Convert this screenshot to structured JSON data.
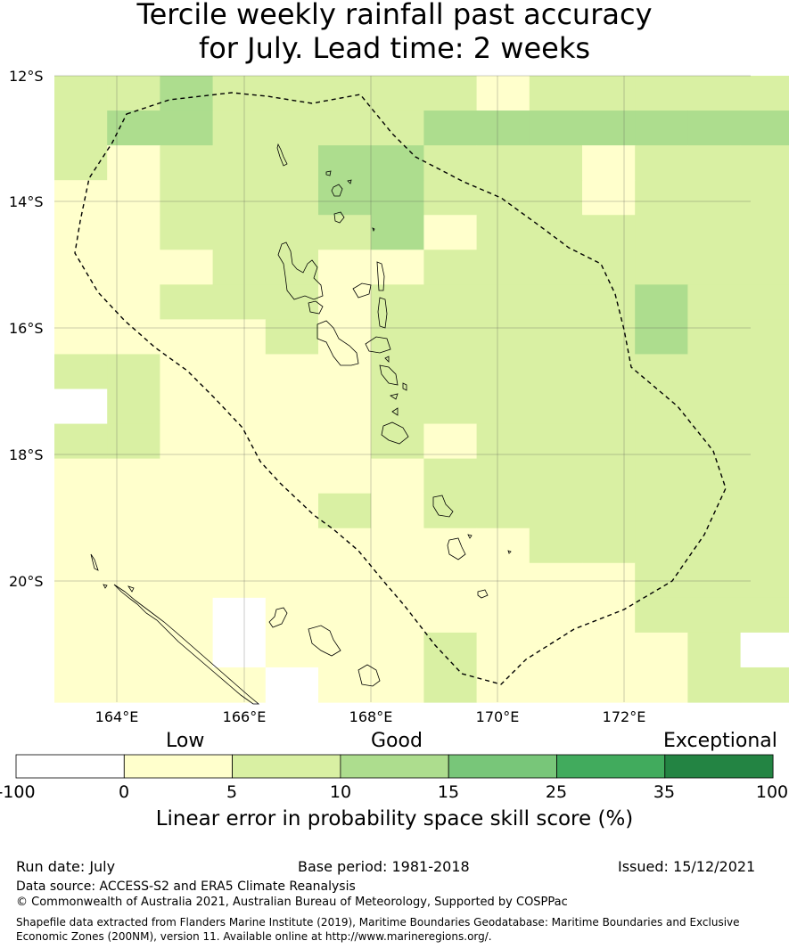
{
  "title": {
    "line1": "Tercile weekly rainfall past accuracy",
    "line2": "for July. Lead time: 2 weeks"
  },
  "map": {
    "lat_labels": [
      "12°S",
      "14°S",
      "16°S",
      "18°S",
      "20°S"
    ],
    "lon_labels": [
      "164°E",
      "166°E",
      "168°E",
      "170°E",
      "172°E"
    ],
    "eez_boundary": "dashed"
  },
  "colorbar": {
    "categories": [
      "Low",
      "Good",
      "Exceptional"
    ],
    "ticks": [
      "-100",
      "0",
      "5",
      "10",
      "15",
      "25",
      "35",
      "100"
    ],
    "colors": [
      "#ffffff",
      "#ffffcc",
      "#d9f0a3",
      "#addd8e",
      "#78c679",
      "#41ab5d",
      "#238443"
    ],
    "label": "Linear error in probability space skill score (%)"
  },
  "footer": {
    "run_date": "Run date: July",
    "base_period": "Base period: 1981-2018",
    "issued": "Issued: 15/12/2021",
    "data_source": "Data source: ACCESS-S2 and ERA5 Climate Reanalysis",
    "copyright": "© Commonwealth of Australia 2021, Australian Bureau of Meteorology, Supported by COSPPac",
    "shapefile_line1": "Shapefile data extracted from Flanders Marine Institute (2019), Maritime Boundaries Geodatabase: Maritime Boundaries and Exclusive",
    "shapefile_line2": "Economic Zones (200NM), version 11. Available online at http://www.marineregions.org/."
  }
}
